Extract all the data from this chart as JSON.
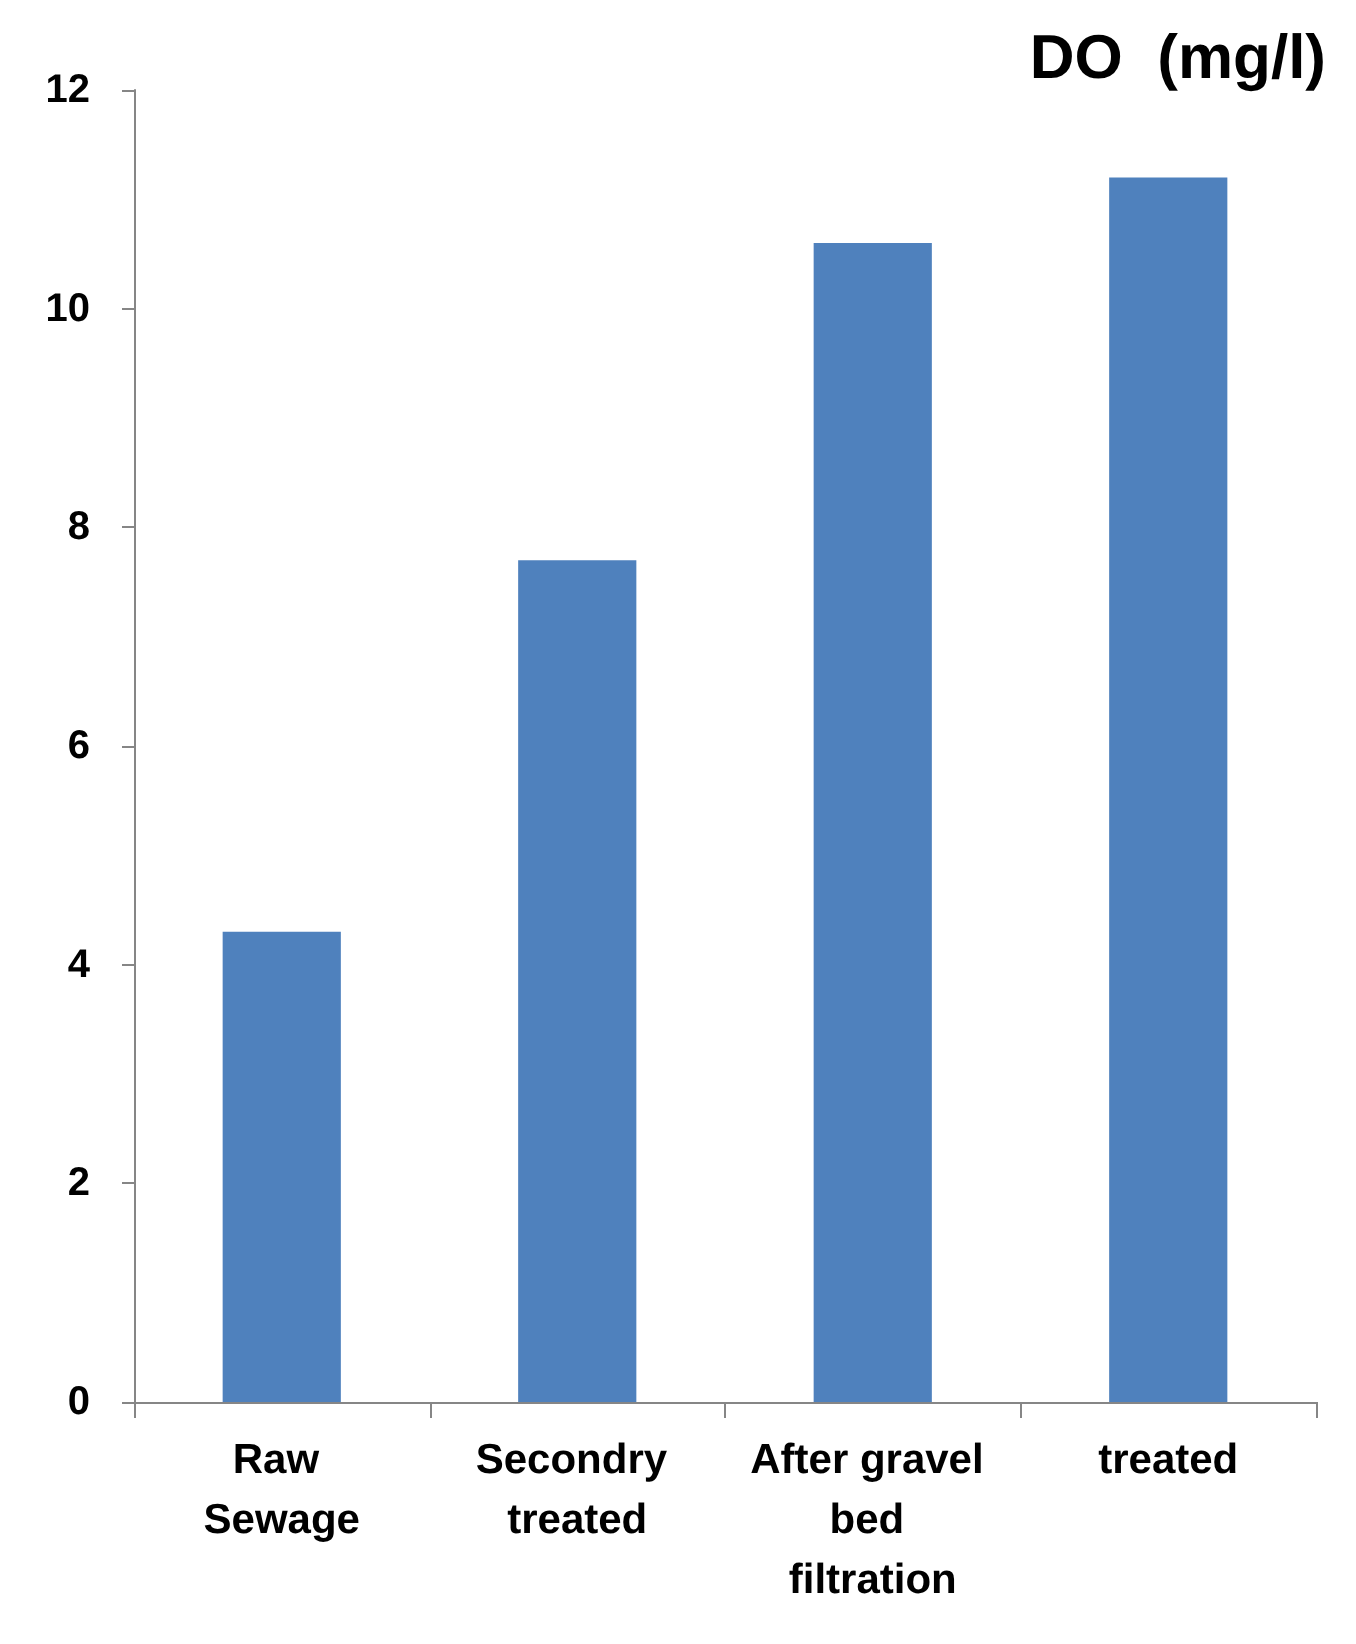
{
  "chart_data": {
    "type": "bar",
    "title": "DO  (mg/l)",
    "categories": [
      "Raw Sewage",
      "Secondry treated",
      "After gravel bed filtration",
      "treated"
    ],
    "values": [
      4.3,
      7.7,
      10.6,
      11.2
    ],
    "color": "#4f81bd",
    "ylim": [
      0,
      12
    ],
    "yticks": [
      0,
      2,
      4,
      6,
      8,
      10,
      12
    ],
    "grid": false
  }
}
